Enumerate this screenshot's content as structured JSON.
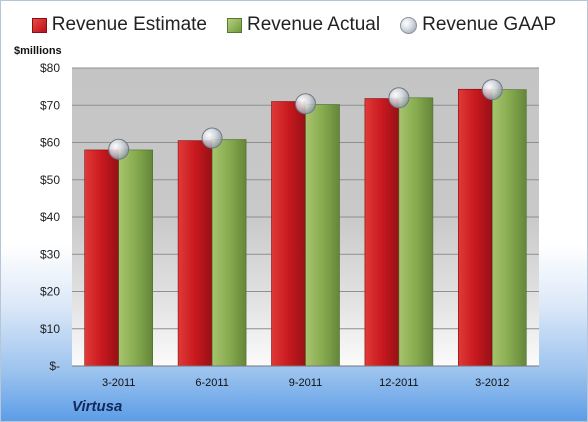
{
  "legend": {
    "estimate": "Revenue Estimate",
    "actual": "Revenue Actual",
    "gaap": "Revenue GAAP"
  },
  "unit_label": "$millions",
  "company": "Virtusa",
  "colors": {
    "estimate": "#c8191f",
    "actual": "#87ab4f",
    "gaap": "#c8ccd4"
  },
  "chart_data": {
    "type": "bar",
    "categories": [
      "3-2011",
      "6-2011",
      "9-2011",
      "12-2011",
      "3-2012"
    ],
    "series": [
      {
        "name": "Revenue Estimate",
        "values": [
          58.0,
          60.5,
          71.0,
          71.8,
          74.3
        ]
      },
      {
        "name": "Revenue Actual",
        "values": [
          58.0,
          60.8,
          70.2,
          72.0,
          74.2
        ]
      },
      {
        "name": "Revenue GAAP",
        "values": [
          58.2,
          61.2,
          70.4,
          72.0,
          74.2
        ]
      }
    ],
    "ylim": [
      0,
      80
    ],
    "yticks": [
      0,
      10,
      20,
      30,
      40,
      50,
      60,
      70,
      80
    ],
    "ytick_labels": [
      "$-",
      "$10",
      "$20",
      "$30",
      "$40",
      "$50",
      "$60",
      "$70",
      "$80"
    ],
    "grid": true,
    "legend_position": "top"
  }
}
